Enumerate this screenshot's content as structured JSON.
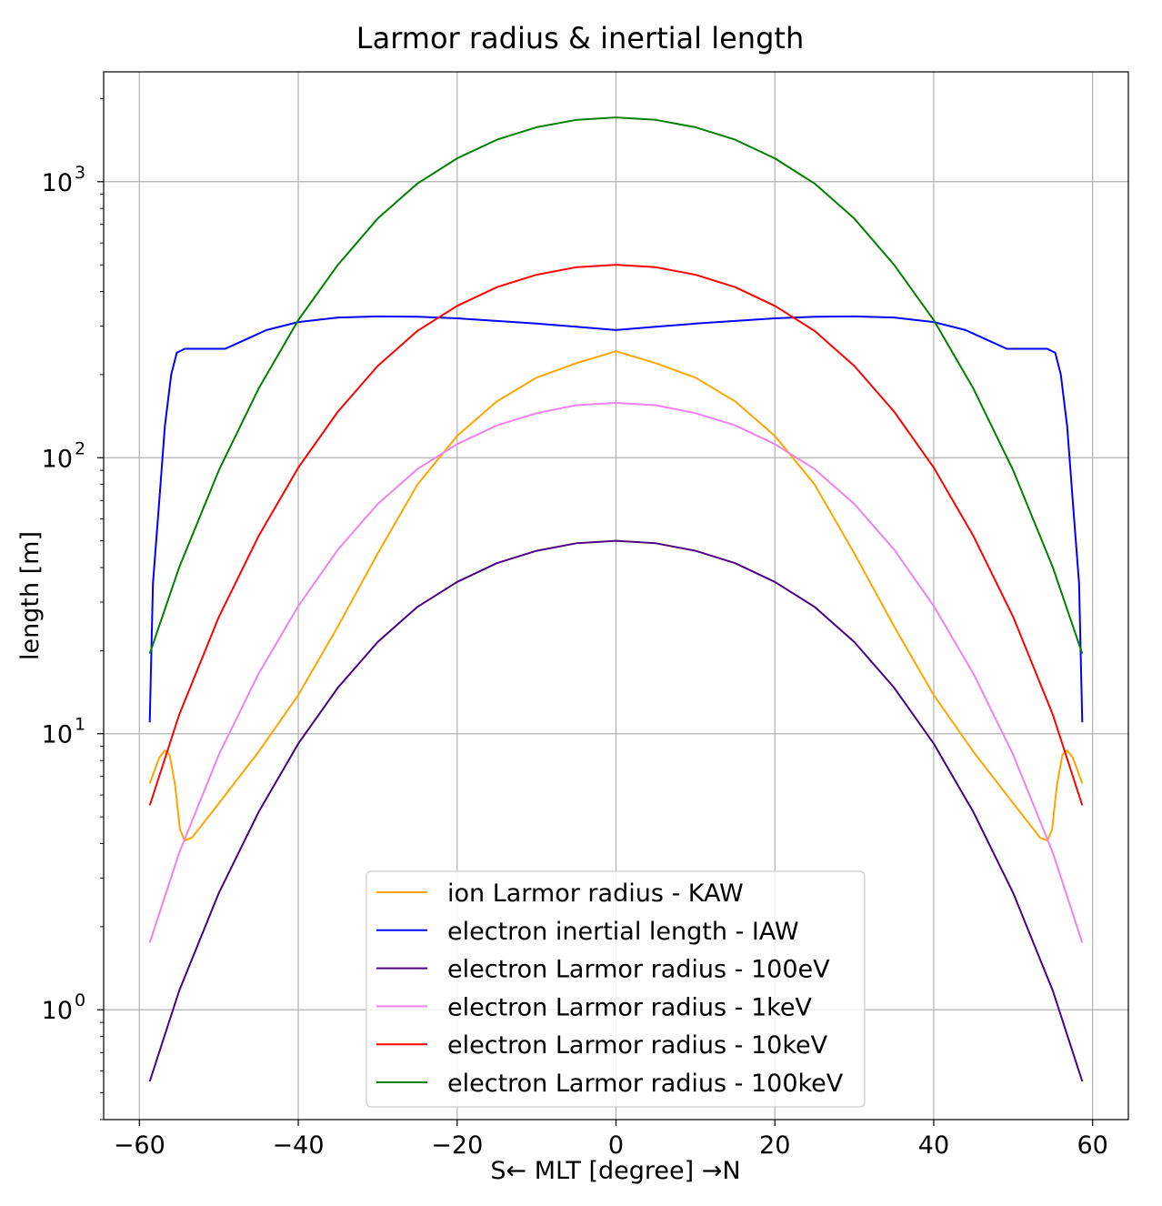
{
  "chart_data": {
    "type": "line",
    "title": "Larmor radius & inertial length",
    "xlabel": "S← MLT [degree] →N",
    "ylabel": "length [m]",
    "xlim": [
      -64.5,
      64.5
    ],
    "ylim": [
      0.4,
      2500
    ],
    "yscale": "log",
    "grid": true,
    "legend_position": "lower-center",
    "x_ticks": [
      {
        "value": -60,
        "label": "−60"
      },
      {
        "value": -40,
        "label": "−40"
      },
      {
        "value": -20,
        "label": "−20"
      },
      {
        "value": 0,
        "label": "0"
      },
      {
        "value": 20,
        "label": "20"
      },
      {
        "value": 40,
        "label": "40"
      },
      {
        "value": 60,
        "label": "60"
      }
    ],
    "y_ticks": [
      {
        "value": 1,
        "base": "10",
        "exp": "0"
      },
      {
        "value": 10,
        "base": "10",
        "exp": "1"
      },
      {
        "value": 100,
        "base": "10",
        "exp": "2"
      },
      {
        "value": 1000,
        "base": "10",
        "exp": "3"
      }
    ],
    "series": [
      {
        "name": "ion Larmor radius - KAW",
        "color": "#ffa500",
        "points": [
          [
            -58.7,
            6.6
          ],
          [
            -57.5,
            8.2
          ],
          [
            -56.8,
            8.7
          ],
          [
            -56.2,
            8.4
          ],
          [
            -55.5,
            6.5
          ],
          [
            -54.9,
            4.5
          ],
          [
            -54.3,
            4.1
          ],
          [
            -53.4,
            4.2
          ],
          [
            -50,
            5.6
          ],
          [
            -45,
            8.6
          ],
          [
            -40,
            13.8
          ],
          [
            -35,
            24.5
          ],
          [
            -30,
            45
          ],
          [
            -25,
            80
          ],
          [
            -20,
            120
          ],
          [
            -15,
            160
          ],
          [
            -10,
            195
          ],
          [
            -5,
            220
          ],
          [
            0,
            243
          ],
          [
            5,
            220
          ],
          [
            10,
            195
          ],
          [
            15,
            160
          ],
          [
            20,
            120
          ],
          [
            25,
            80
          ],
          [
            30,
            45
          ],
          [
            35,
            24.5
          ],
          [
            40,
            13.8
          ],
          [
            45,
            8.6
          ],
          [
            50,
            5.6
          ],
          [
            53.4,
            4.2
          ],
          [
            54.3,
            4.1
          ],
          [
            54.9,
            4.5
          ],
          [
            55.5,
            6.5
          ],
          [
            56.2,
            8.4
          ],
          [
            56.8,
            8.7
          ],
          [
            57.5,
            8.2
          ],
          [
            58.7,
            6.6
          ]
        ]
      },
      {
        "name": "electron inertial length - IAW",
        "color": "#0000ff",
        "points": [
          [
            -58.7,
            11
          ],
          [
            -58.3,
            35
          ],
          [
            -57.5,
            70
          ],
          [
            -56.8,
            130
          ],
          [
            -56,
            200
          ],
          [
            -55.3,
            240
          ],
          [
            -54.3,
            248
          ],
          [
            -52,
            248
          ],
          [
            -49.2,
            248
          ],
          [
            -47,
            265
          ],
          [
            -44,
            290
          ],
          [
            -40,
            310
          ],
          [
            -35,
            322
          ],
          [
            -30,
            325
          ],
          [
            -25,
            324
          ],
          [
            -20,
            320
          ],
          [
            -15,
            313
          ],
          [
            -10,
            306
          ],
          [
            -5,
            298
          ],
          [
            0,
            290
          ],
          [
            5,
            298
          ],
          [
            10,
            306
          ],
          [
            15,
            313
          ],
          [
            20,
            320
          ],
          [
            25,
            324
          ],
          [
            30,
            325
          ],
          [
            35,
            322
          ],
          [
            40,
            310
          ],
          [
            44,
            290
          ],
          [
            47,
            265
          ],
          [
            49.2,
            248
          ],
          [
            52,
            248
          ],
          [
            54.3,
            248
          ],
          [
            55.3,
            240
          ],
          [
            56,
            200
          ],
          [
            56.8,
            130
          ],
          [
            57.5,
            70
          ],
          [
            58.3,
            35
          ],
          [
            58.7,
            11
          ]
        ]
      },
      {
        "name": "electron Larmor radius - 100eV",
        "color": "#4b0082",
        "points": [
          [
            -58.7,
            0.55
          ],
          [
            -55,
            1.17
          ],
          [
            -50,
            2.65
          ],
          [
            -45,
            5.2
          ],
          [
            -40,
            9.2
          ],
          [
            -35,
            14.7
          ],
          [
            -30,
            21.5
          ],
          [
            -25,
            28.8
          ],
          [
            -20,
            35.5
          ],
          [
            -15,
            41.5
          ],
          [
            -10,
            46
          ],
          [
            -5,
            49
          ],
          [
            0,
            50
          ],
          [
            5,
            49
          ],
          [
            10,
            46
          ],
          [
            15,
            41.5
          ],
          [
            20,
            35.5
          ],
          [
            25,
            28.8
          ],
          [
            30,
            21.5
          ],
          [
            35,
            14.7
          ],
          [
            40,
            9.2
          ],
          [
            45,
            5.2
          ],
          [
            50,
            2.65
          ],
          [
            55,
            1.17
          ],
          [
            58.7,
            0.55
          ]
        ]
      },
      {
        "name": "electron Larmor radius - 1keV",
        "color": "#ee82ee",
        "points": [
          [
            -58.7,
            1.75
          ],
          [
            -55,
            3.7
          ],
          [
            -50,
            8.4
          ],
          [
            -45,
            16.5
          ],
          [
            -40,
            29
          ],
          [
            -35,
            46.5
          ],
          [
            -30,
            68
          ],
          [
            -25,
            91
          ],
          [
            -20,
            112
          ],
          [
            -15,
            131
          ],
          [
            -10,
            145
          ],
          [
            -5,
            155
          ],
          [
            0,
            158
          ],
          [
            5,
            155
          ],
          [
            10,
            145
          ],
          [
            15,
            131
          ],
          [
            20,
            112
          ],
          [
            25,
            91
          ],
          [
            30,
            68
          ],
          [
            35,
            46.5
          ],
          [
            40,
            29
          ],
          [
            45,
            16.5
          ],
          [
            50,
            8.4
          ],
          [
            55,
            3.7
          ],
          [
            58.7,
            1.75
          ]
        ]
      },
      {
        "name": "electron Larmor radius - 10keV",
        "color": "#ff0000",
        "points": [
          [
            -58.7,
            5.5
          ],
          [
            -55,
            11.7
          ],
          [
            -50,
            26.5
          ],
          [
            -45,
            52
          ],
          [
            -40,
            92
          ],
          [
            -35,
            147
          ],
          [
            -30,
            215
          ],
          [
            -25,
            288
          ],
          [
            -20,
            355
          ],
          [
            -15,
            415
          ],
          [
            -10,
            460
          ],
          [
            -5,
            490
          ],
          [
            0,
            500
          ],
          [
            5,
            490
          ],
          [
            10,
            460
          ],
          [
            15,
            415
          ],
          [
            20,
            355
          ],
          [
            25,
            288
          ],
          [
            30,
            215
          ],
          [
            35,
            147
          ],
          [
            40,
            92
          ],
          [
            45,
            52
          ],
          [
            50,
            26.5
          ],
          [
            55,
            11.7
          ],
          [
            58.7,
            5.5
          ]
        ]
      },
      {
        "name": "electron Larmor radius - 100keV",
        "color": "#008000",
        "points": [
          [
            -58.7,
            19.5
          ],
          [
            -55,
            40
          ],
          [
            -50,
            90
          ],
          [
            -45,
            178
          ],
          [
            -40,
            315
          ],
          [
            -35,
            500
          ],
          [
            -30,
            735
          ],
          [
            -25,
            985
          ],
          [
            -20,
            1215
          ],
          [
            -15,
            1420
          ],
          [
            -10,
            1575
          ],
          [
            -5,
            1675
          ],
          [
            0,
            1710
          ],
          [
            5,
            1675
          ],
          [
            10,
            1575
          ],
          [
            15,
            1420
          ],
          [
            20,
            1215
          ],
          [
            25,
            985
          ],
          [
            30,
            735
          ],
          [
            35,
            500
          ],
          [
            40,
            315
          ],
          [
            45,
            178
          ],
          [
            50,
            90
          ],
          [
            55,
            40
          ],
          [
            58.7,
            19.5
          ]
        ]
      }
    ]
  }
}
